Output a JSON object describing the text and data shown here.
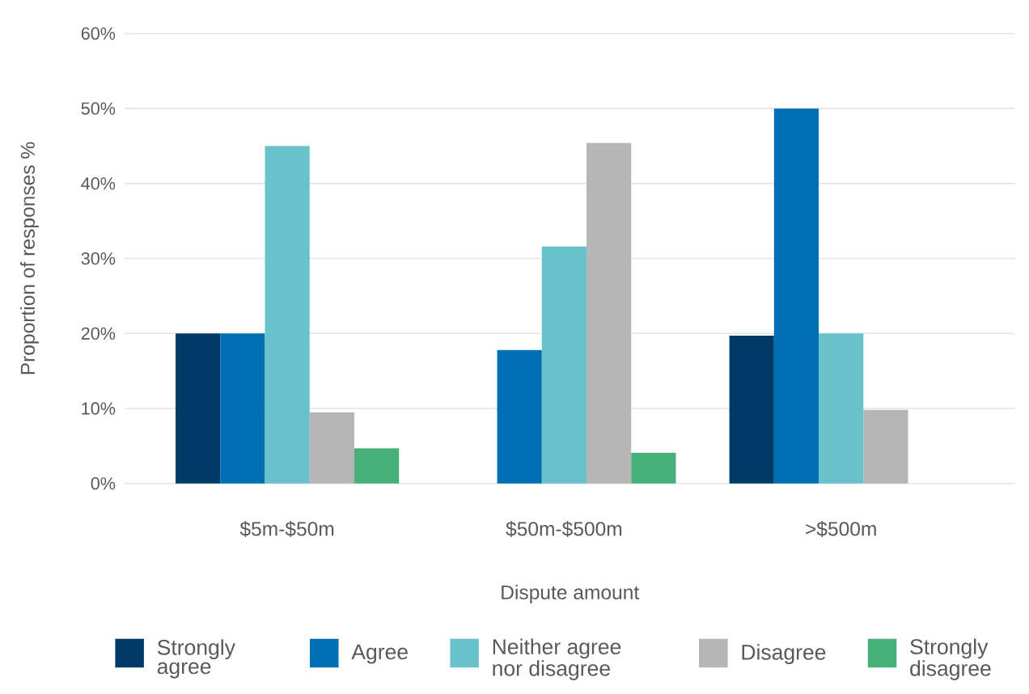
{
  "chart_data": {
    "type": "bar",
    "xlabel": "Dispute amount",
    "ylabel": "Proportion of responses %",
    "categories": [
      "$5m-$50m",
      "$50m-$500m",
      ">$500m"
    ],
    "series": [
      {
        "name": "Strongly agree",
        "color": "#003a66",
        "values": [
          20,
          0,
          19.7
        ]
      },
      {
        "name": "Agree",
        "color": "#006eb2",
        "values": [
          20,
          17.8,
          50
        ]
      },
      {
        "name": "Neither agree nor disagree",
        "color": "#67c2cc",
        "values": [
          45,
          31.6,
          20
        ]
      },
      {
        "name": "Disagree",
        "color": "#b5b6b5",
        "values": [
          9.5,
          45.4,
          9.8
        ]
      },
      {
        "name": "Strongly disagree",
        "color": "#47b07a",
        "values": [
          4.7,
          4.1,
          0
        ]
      }
    ],
    "ylim": [
      0,
      60
    ],
    "yticks": [
      {
        "value": 0,
        "label": "0%"
      },
      {
        "value": 10,
        "label": "10%"
      },
      {
        "value": 20,
        "label": "20%"
      },
      {
        "value": 30,
        "label": "30%"
      },
      {
        "value": 40,
        "label": "40%"
      },
      {
        "value": 50,
        "label": "50%"
      },
      {
        "value": 60,
        "label": "60%"
      }
    ],
    "grid": "y",
    "legend": "bottom"
  }
}
